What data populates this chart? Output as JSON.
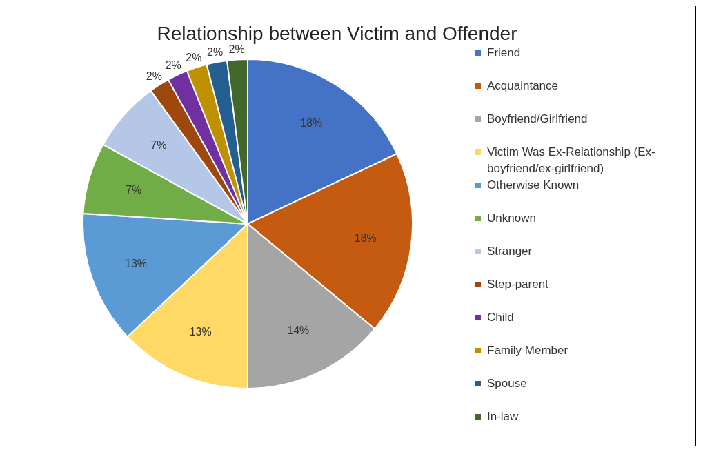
{
  "chart_data": {
    "type": "pie",
    "title": "Relationship between Victim and Offender",
    "categories": [
      "Friend",
      "Acquaintance",
      "Boyfriend/Girlfriend",
      "Victim Was Ex-Relationship (Ex-boyfriend/ex-girlfriend)",
      "Otherwise Known",
      "Unknown",
      "Stranger",
      "Step-parent",
      "Child",
      "Family Member",
      "Spouse",
      "In-law"
    ],
    "values": [
      18,
      18,
      14,
      13,
      13,
      7,
      7,
      2,
      2,
      2,
      2,
      2
    ],
    "value_labels": [
      "18%",
      "18%",
      "14%",
      "13%",
      "13%",
      "7%",
      "7%",
      "2%",
      "2%",
      "2%",
      "2%",
      "2%"
    ],
    "colors": [
      "#4472c4",
      "#c55a11",
      "#a5a5a5",
      "#ffd966",
      "#5b9bd5",
      "#70ad47",
      "#b4c7e7",
      "#9e480e",
      "#7030a0",
      "#bf9000",
      "#255e91",
      "#43682b"
    ],
    "legend": "right"
  }
}
